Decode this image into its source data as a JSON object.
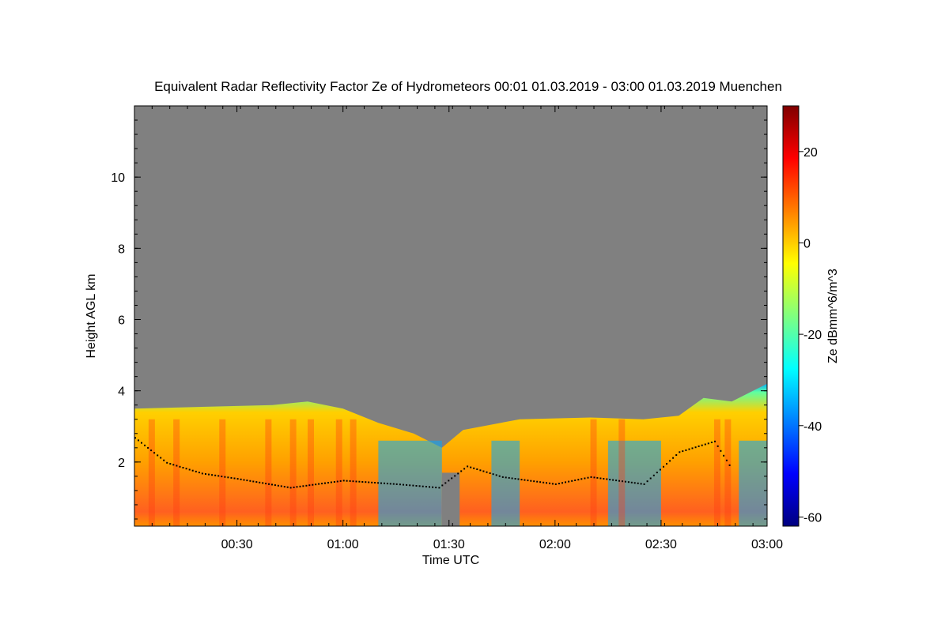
{
  "chart_data": {
    "type": "heatmap",
    "title": "Equivalent Radar Reflectivity Factor Ze of Hydrometeors   00:01 01.03.2019 - 03:00 01.03.2019 Muenchen",
    "xlabel": "Time UTC",
    "ylabel": "Height AGL km",
    "colorbar_label": "Ze dBmm^6/m^3",
    "x_range": [
      "00:01",
      "03:00"
    ],
    "x_ticks": [
      "00:30",
      "01:00",
      "01:30",
      "02:00",
      "02:30",
      "03:00"
    ],
    "ylim": [
      0.2,
      12.0
    ],
    "y_ticks": [
      2,
      4,
      6,
      8,
      10
    ],
    "colorbar_range": [
      -62,
      30
    ],
    "colorbar_ticks": [
      -60,
      -40,
      -20,
      0,
      20
    ],
    "colormap": "jet",
    "background_color": "#808080",
    "echo_top_km": [
      {
        "x": "00:01",
        "y": 3.5
      },
      {
        "x": "00:20",
        "y": 3.55
      },
      {
        "x": "00:40",
        "y": 3.6
      },
      {
        "x": "00:50",
        "y": 3.7
      },
      {
        "x": "01:00",
        "y": 3.5
      },
      {
        "x": "01:10",
        "y": 3.1
      },
      {
        "x": "01:20",
        "y": 2.8
      },
      {
        "x": "01:28",
        "y": 2.4
      },
      {
        "x": "01:34",
        "y": 2.9
      },
      {
        "x": "01:50",
        "y": 3.2
      },
      {
        "x": "02:10",
        "y": 3.25
      },
      {
        "x": "02:25",
        "y": 3.2
      },
      {
        "x": "02:35",
        "y": 3.3
      },
      {
        "x": "02:42",
        "y": 3.8
      },
      {
        "x": "02:50",
        "y": 3.7
      },
      {
        "x": "03:00",
        "y": 4.2
      }
    ],
    "melting_layer_km": [
      {
        "x": "00:01",
        "y": 2.7
      },
      {
        "x": "00:10",
        "y": 2.0
      },
      {
        "x": "00:20",
        "y": 1.7
      },
      {
        "x": "00:30",
        "y": 1.55
      },
      {
        "x": "00:45",
        "y": 1.3
      },
      {
        "x": "01:00",
        "y": 1.5
      },
      {
        "x": "01:15",
        "y": 1.4
      },
      {
        "x": "01:27",
        "y": 1.3
      },
      {
        "x": "01:35",
        "y": 1.9
      },
      {
        "x": "01:45",
        "y": 1.6
      },
      {
        "x": "02:00",
        "y": 1.4
      },
      {
        "x": "02:10",
        "y": 1.6
      },
      {
        "x": "02:25",
        "y": 1.4
      },
      {
        "x": "02:35",
        "y": 2.3
      },
      {
        "x": "02:45",
        "y": 2.6
      },
      {
        "x": "02:50",
        "y": 1.8
      }
    ]
  }
}
